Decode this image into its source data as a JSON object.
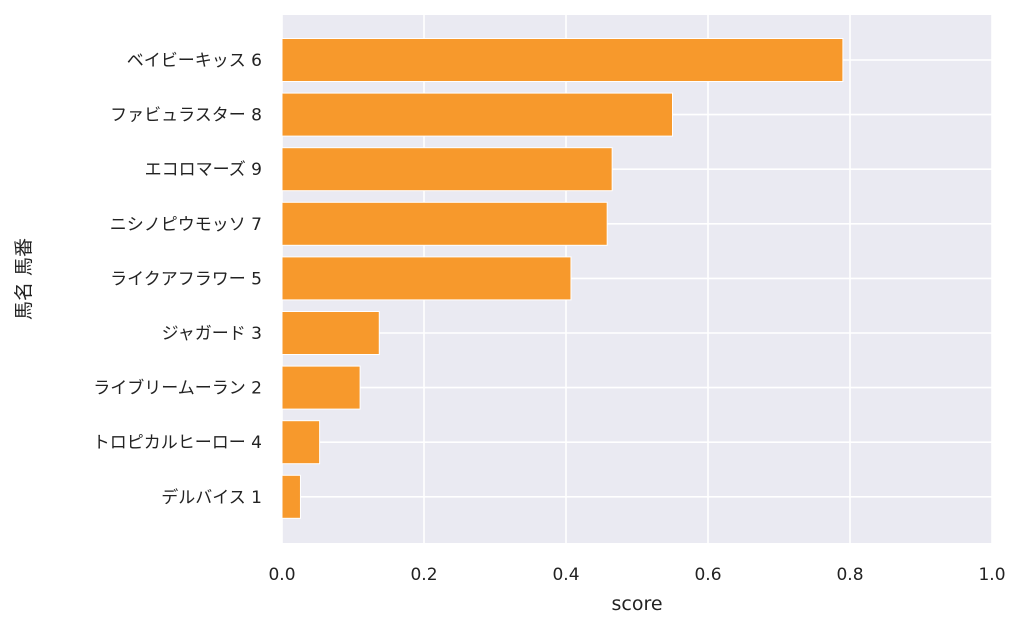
{
  "chart_data": {
    "type": "bar",
    "orientation": "horizontal",
    "categories": [
      "ベイビーキッス 6",
      "ファビュラスター 8",
      "エコロマーズ 9",
      "ニシノピウモッソ 7",
      "ライクアフラワー 5",
      "ジャガード 3",
      "ライブリームーラン 2",
      "トロピカルヒーロー 4",
      "デルバイス 1"
    ],
    "values": [
      0.79,
      0.55,
      0.465,
      0.458,
      0.407,
      0.137,
      0.11,
      0.053,
      0.026
    ],
    "xlabel": "score",
    "ylabel": "馬名 馬番",
    "xlim": [
      0,
      1.0
    ],
    "xticks": [
      "0.0",
      "0.2",
      "0.4",
      "0.6",
      "0.8",
      "1.0"
    ],
    "grid": true,
    "colors": {
      "bar": "#f7992c",
      "bar_edge": "#ffffff",
      "background": "#eaeaf2",
      "grid": "#ffffff"
    }
  }
}
